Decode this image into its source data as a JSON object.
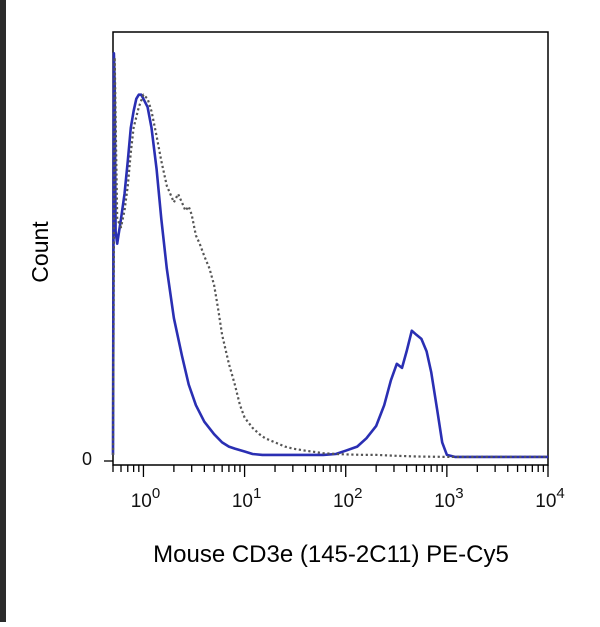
{
  "chart_data": {
    "type": "line",
    "title": "",
    "xlabel": "Mouse CD3e (145-2C11) PE-Cy5",
    "ylabel": "Count",
    "x_scale": "log10",
    "xlim": [
      0.5,
      10000
    ],
    "ylim": [
      0,
      1.0
    ],
    "x_ticks": [
      {
        "value": 1,
        "base": "10",
        "exp": "0"
      },
      {
        "value": 10,
        "base": "10",
        "exp": "1"
      },
      {
        "value": 100,
        "base": "10",
        "exp": "2"
      },
      {
        "value": 1000,
        "base": "10",
        "exp": "3"
      },
      {
        "value": 10000,
        "base": "10",
        "exp": "4"
      }
    ],
    "y_ticks": [
      {
        "value": 0,
        "label": "0"
      }
    ],
    "grid": false,
    "legend": "none",
    "colors": {
      "stained": "#2a2fb3",
      "control": "#555555"
    },
    "series": [
      {
        "style": "solid",
        "x": [
          0.5,
          0.51,
          0.52,
          0.53,
          0.55,
          0.6,
          0.65,
          0.7,
          0.75,
          0.8,
          0.85,
          0.9,
          0.95,
          1.0,
          1.1,
          1.2,
          1.35,
          1.5,
          1.7,
          2.0,
          2.4,
          2.8,
          3.3,
          4.0,
          5.0,
          6.0,
          7.0,
          8.0,
          10,
          12,
          15,
          20,
          30,
          40,
          60,
          80,
          100,
          130,
          160,
          200,
          240,
          280,
          320,
          360,
          400,
          450,
          500,
          560,
          630,
          700,
          800,
          900,
          1000,
          1200,
          1500,
          2000,
          3000,
          5000,
          10000
        ],
        "y": [
          0.01,
          0.98,
          0.9,
          0.55,
          0.52,
          0.58,
          0.64,
          0.72,
          0.8,
          0.84,
          0.87,
          0.88,
          0.88,
          0.87,
          0.85,
          0.8,
          0.7,
          0.58,
          0.46,
          0.34,
          0.25,
          0.18,
          0.13,
          0.09,
          0.06,
          0.04,
          0.03,
          0.025,
          0.018,
          0.012,
          0.01,
          0.01,
          0.01,
          0.01,
          0.01,
          0.012,
          0.02,
          0.03,
          0.05,
          0.08,
          0.13,
          0.19,
          0.23,
          0.22,
          0.26,
          0.31,
          0.3,
          0.29,
          0.26,
          0.21,
          0.12,
          0.04,
          0.01,
          0.005,
          0.005,
          0.005,
          0.005,
          0.005,
          0.005
        ]
      },
      {
        "style": "dotted",
        "x": [
          0.5,
          0.52,
          0.55,
          0.6,
          0.65,
          0.7,
          0.75,
          0.8,
          0.9,
          1.0,
          1.1,
          1.2,
          1.35,
          1.5,
          1.7,
          2.0,
          2.2,
          2.4,
          2.6,
          2.8,
          3.0,
          3.3,
          3.6,
          4.0,
          4.5,
          5.0,
          5.5,
          6.0,
          7.0,
          8.0,
          9.0,
          10,
          12,
          14,
          16,
          20,
          25,
          30,
          40,
          50,
          60,
          80,
          100,
          150,
          200,
          300,
          500,
          1000,
          2000,
          5000,
          10000
        ],
        "y": [
          0.01,
          0.97,
          0.58,
          0.56,
          0.6,
          0.66,
          0.74,
          0.8,
          0.85,
          0.88,
          0.87,
          0.84,
          0.78,
          0.72,
          0.66,
          0.62,
          0.64,
          0.62,
          0.6,
          0.61,
          0.59,
          0.54,
          0.52,
          0.49,
          0.46,
          0.42,
          0.36,
          0.3,
          0.23,
          0.18,
          0.13,
          0.1,
          0.075,
          0.06,
          0.05,
          0.04,
          0.03,
          0.025,
          0.02,
          0.017,
          0.014,
          0.012,
          0.011,
          0.01,
          0.01,
          0.008,
          0.006,
          0.005,
          0.005,
          0.005,
          0.005
        ]
      }
    ]
  }
}
